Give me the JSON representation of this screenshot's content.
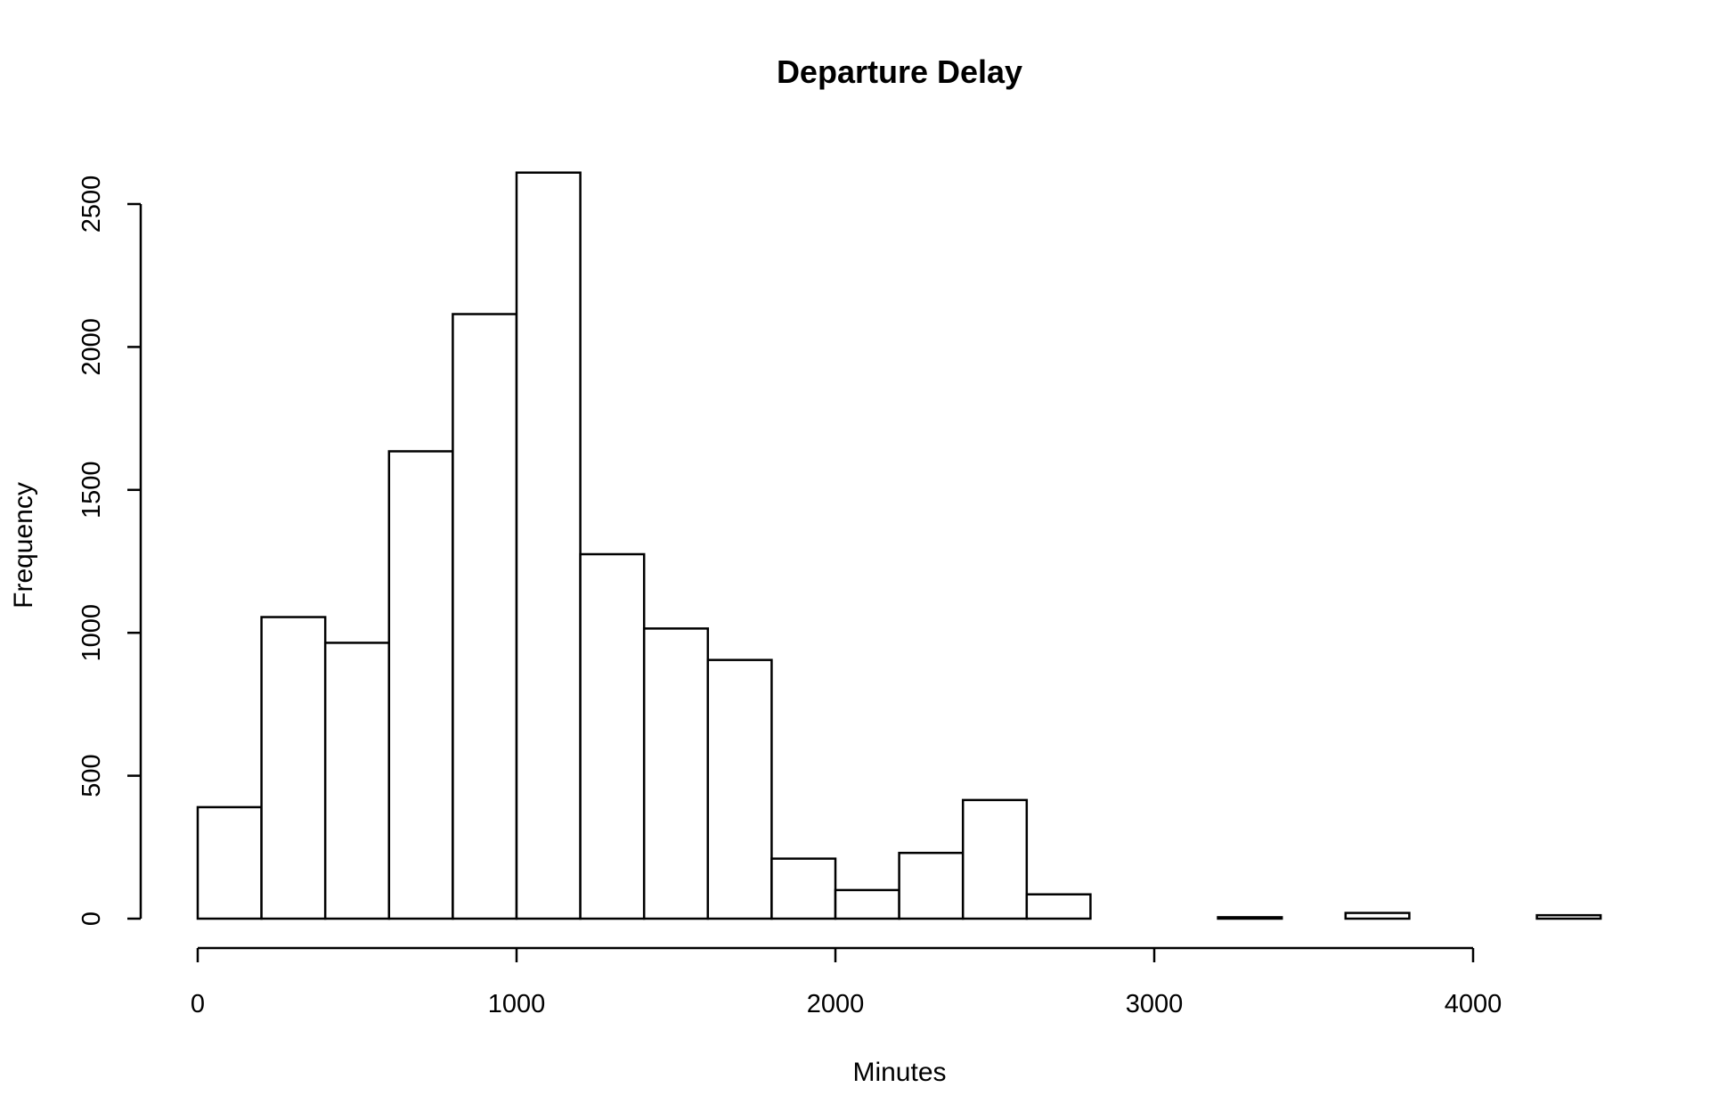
{
  "chart_data": {
    "type": "bar",
    "title": "Departure Delay",
    "xlabel": "Minutes",
    "ylabel": "Frequency",
    "bin_edges": [
      0,
      200,
      400,
      600,
      800,
      1000,
      1200,
      1400,
      1600,
      1800,
      2000,
      2200,
      2400,
      2600,
      2800,
      3000,
      3200,
      3400,
      3600,
      3800,
      4000,
      4200,
      4400
    ],
    "values": [
      390,
      1055,
      965,
      1635,
      2115,
      2610,
      1275,
      1015,
      905,
      210,
      100,
      230,
      415,
      85,
      0,
      0,
      5,
      0,
      20,
      0,
      0,
      12
    ],
    "xlim": [
      0,
      4400
    ],
    "ylim": [
      0,
      2610
    ],
    "x_ticks": [
      0,
      1000,
      2000,
      3000,
      4000
    ],
    "x_tick_labels": [
      "0",
      "1000",
      "2000",
      "3000",
      "4000"
    ],
    "y_ticks": [
      0,
      500,
      1000,
      1500,
      2000,
      2500
    ],
    "y_tick_labels": [
      "0",
      "500",
      "1000",
      "1500",
      "2000",
      "2500"
    ],
    "grid": false,
    "legend": "none",
    "colors": {
      "bar_fill": "#ffffff",
      "bar_stroke": "#000000"
    }
  }
}
